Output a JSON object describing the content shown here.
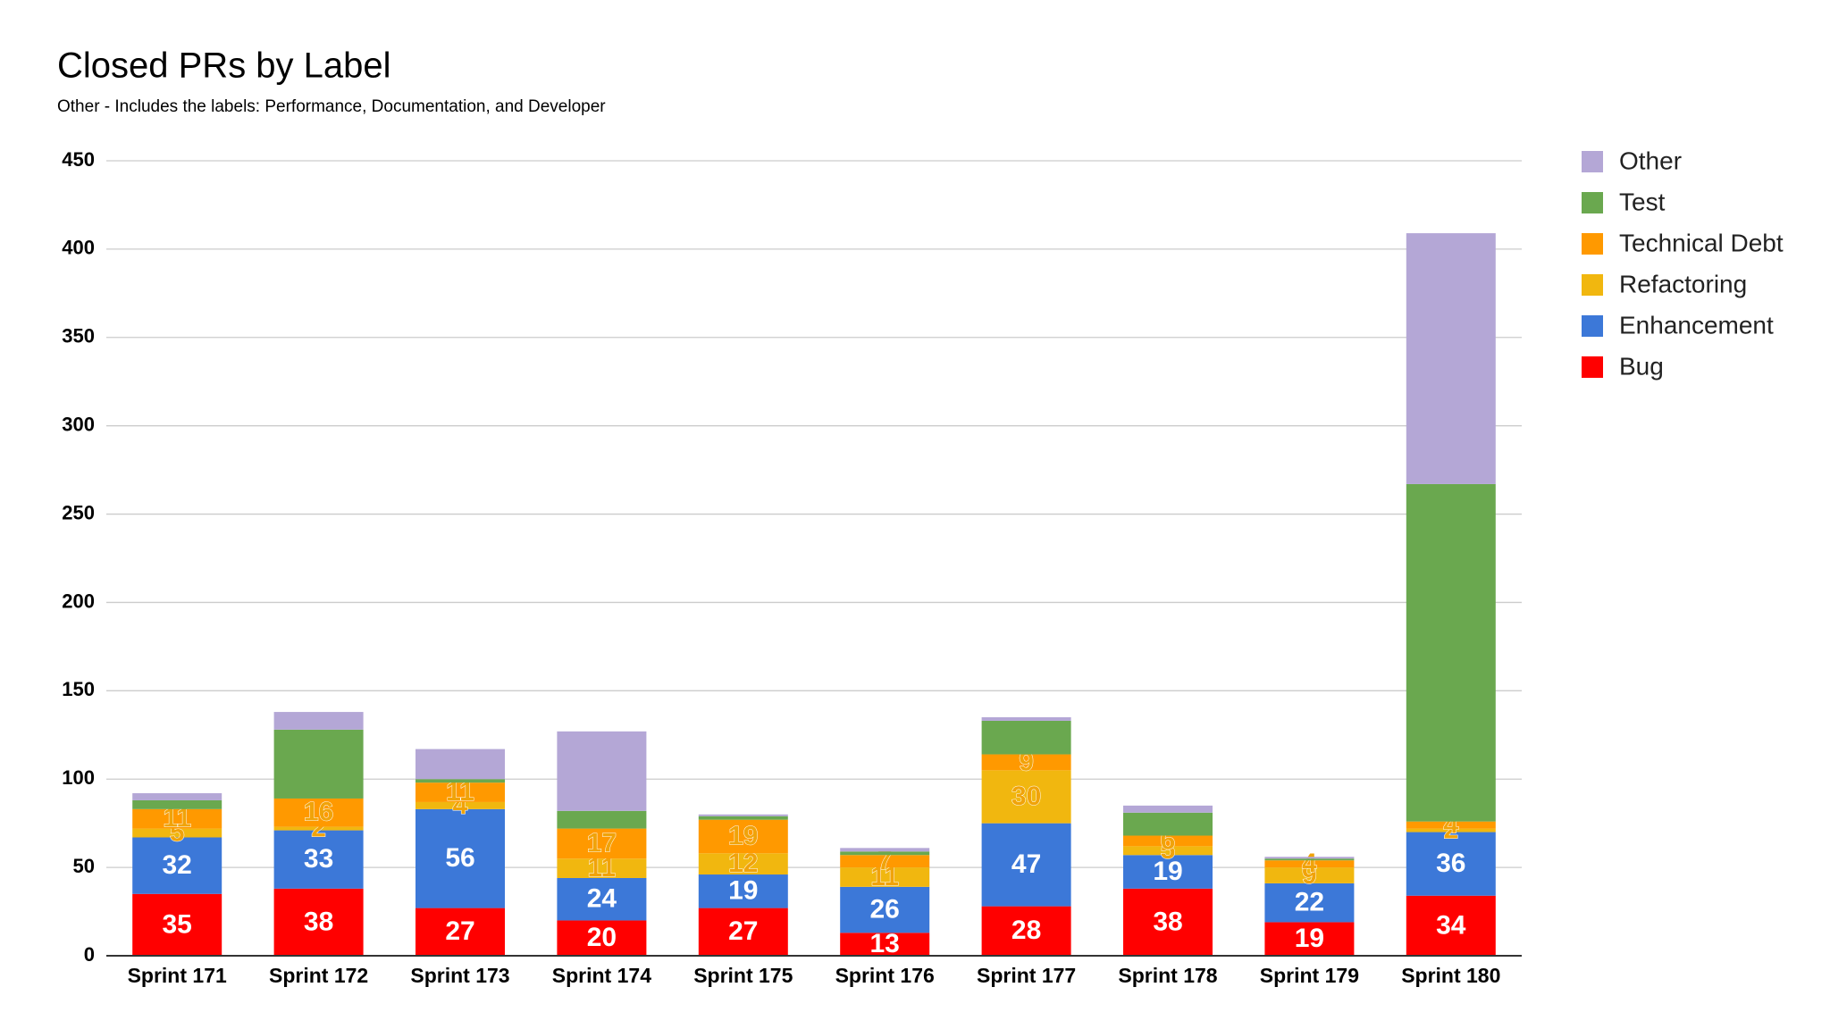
{
  "chart_data": {
    "type": "stacked_bar",
    "title": "Closed PRs by Label",
    "subtitle": "Other - Includes the labels: Performance, Documentation, and Developer",
    "categories": [
      "Sprint 171",
      "Sprint 172",
      "Sprint 173",
      "Sprint 174",
      "Sprint 175",
      "Sprint 176",
      "Sprint 177",
      "Sprint 178",
      "Sprint 179",
      "Sprint 180"
    ],
    "series": [
      {
        "name": "Bug",
        "color": "#ff0000",
        "label_color": "#ffffff",
        "values": [
          35,
          38,
          27,
          20,
          27,
          13,
          28,
          38,
          19,
          34
        ],
        "value_labels": [
          "35",
          "38",
          "27",
          "20",
          "27",
          "13",
          "28",
          "38",
          "19",
          "34"
        ]
      },
      {
        "name": "Enhancement",
        "color": "#3c78d8",
        "label_color": "#ffffff",
        "values": [
          32,
          33,
          56,
          24,
          19,
          26,
          47,
          19,
          22,
          36
        ],
        "value_labels": [
          "32",
          "33",
          "56",
          "24",
          "19",
          "26",
          "47",
          "19",
          "22",
          "36"
        ]
      },
      {
        "name": "Refactoring",
        "color": "#f1b70f",
        "label_color": "#f0a30a",
        "values": [
          5,
          2,
          4,
          11,
          12,
          11,
          30,
          5,
          9,
          2
        ],
        "value_labels": [
          "5",
          "2",
          "4",
          "11",
          "12",
          "11",
          "30",
          "5",
          "9",
          "2"
        ]
      },
      {
        "name": "Technical Debt",
        "color": "#ff9900",
        "label_color": "#f0a30a",
        "values": [
          11,
          16,
          11,
          17,
          19,
          7,
          9,
          6,
          4,
          4
        ],
        "value_labels": [
          "11",
          "16",
          "11",
          "17",
          "19",
          "7",
          "9",
          "6",
          "4",
          "4"
        ]
      },
      {
        "name": "Test",
        "color": "#6aa84f",
        "label_color": "#f0a30a",
        "values": [
          5,
          39,
          2,
          10,
          2,
          2,
          19,
          13,
          1,
          191
        ],
        "value_labels": [
          null,
          null,
          null,
          null,
          null,
          null,
          null,
          null,
          null,
          null
        ]
      },
      {
        "name": "Other",
        "color": "#b4a7d6",
        "label_color": "#f0a30a",
        "values": [
          4,
          10,
          17,
          45,
          1,
          2,
          2,
          4,
          1,
          142
        ],
        "value_labels": [
          null,
          null,
          null,
          null,
          null,
          null,
          null,
          null,
          null,
          null
        ]
      }
    ],
    "ylim": [
      0,
      450
    ],
    "yticks": [
      0,
      50,
      100,
      150,
      200,
      250,
      300,
      350,
      400,
      450
    ],
    "grid": true,
    "legend": "right"
  }
}
